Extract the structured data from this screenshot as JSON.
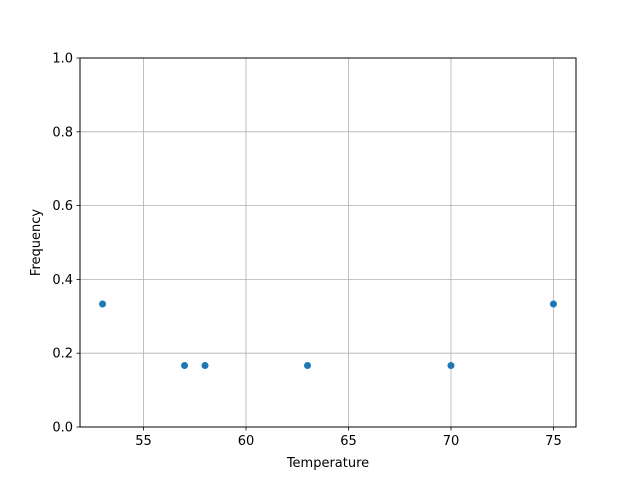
{
  "chart_data": {
    "type": "scatter",
    "title": "",
    "xlabel": "Temperature",
    "ylabel": "Frequency",
    "xlim": [
      51.9,
      76.1
    ],
    "ylim": [
      0,
      1.0
    ],
    "xticks": [
      55,
      60,
      65,
      70,
      75
    ],
    "xtick_labels": [
      "55",
      "60",
      "65",
      "70",
      "75"
    ],
    "yticks": [
      0,
      0.2,
      0.4,
      0.6,
      0.8,
      1.0
    ],
    "ytick_labels": [
      "0.0",
      "0.2",
      "0.4",
      "0.6",
      "0.8",
      "1.0"
    ],
    "grid": true,
    "marker_color": "#1f77b4",
    "points": [
      {
        "x": 53,
        "y": 0.3333
      },
      {
        "x": 57,
        "y": 0.1667
      },
      {
        "x": 58,
        "y": 0.1667
      },
      {
        "x": 63,
        "y": 0.1667
      },
      {
        "x": 70,
        "y": 0.1667
      },
      {
        "x": 75,
        "y": 0.3333
      }
    ]
  }
}
